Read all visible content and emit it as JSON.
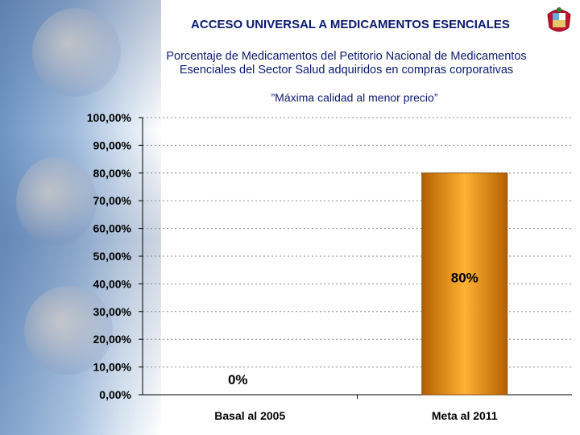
{
  "header": {
    "title": "ACCESO UNIVERSAL A MEDICAMENTOS ESENCIALES",
    "subtitle_line1": "Porcentaje de Medicamentos del Petitorio Nacional de Medicamentos",
    "subtitle_line2": "Esenciales del Sector Salud adquiridos en compras corporativas",
    "tagline": "”Máxima calidad al menor precio”"
  },
  "colors": {
    "title": "#0a1a6e",
    "bar_light": "#ffb233",
    "bar_dark": "#b35f00",
    "gridline": "#888888"
  },
  "chart_data": {
    "type": "bar",
    "title": "",
    "xlabel": "",
    "ylabel": "",
    "categories": [
      "Basal al 2005",
      "Meta al 2011"
    ],
    "values": [
      0,
      80
    ],
    "data_labels": [
      "0%",
      "80%"
    ],
    "ylim": [
      0,
      100
    ],
    "yticks": [
      0,
      10,
      20,
      30,
      40,
      50,
      60,
      70,
      80,
      90,
      100
    ],
    "ytick_labels": [
      "0,00%",
      "10,00%",
      "20,00%",
      "30,00%",
      "40,00%",
      "50,00%",
      "60,00%",
      "70,00%",
      "80,00%",
      "90,00%",
      "100,00%"
    ],
    "grid": true
  }
}
